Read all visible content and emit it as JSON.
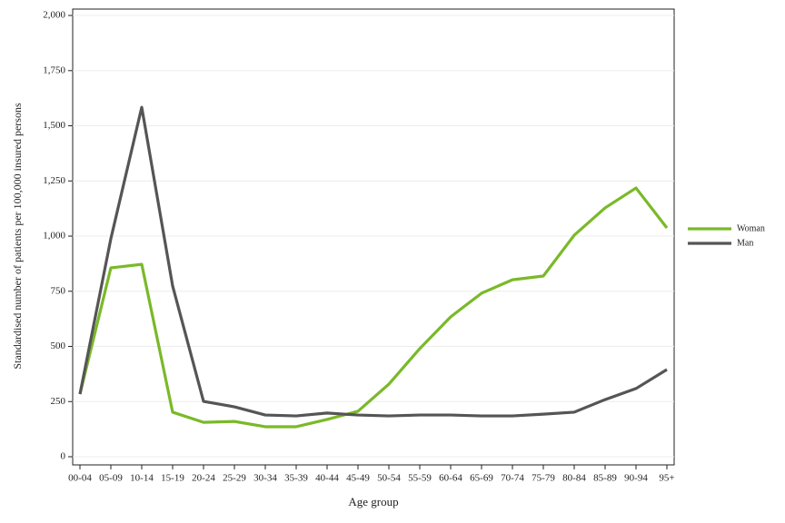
{
  "chart_data": {
    "type": "line",
    "x_label": "Age group",
    "y_label": "Standardised number of patients per 100,000 insured persons",
    "categories": [
      "00-04",
      "05-09",
      "10-14",
      "15-19",
      "20-24",
      "25-29",
      "30-34",
      "35-39",
      "40-44",
      "45-49",
      "50-54",
      "55-59",
      "60-64",
      "65-69",
      "70-74",
      "75-79",
      "80-84",
      "85-89",
      "90-94",
      "95+"
    ],
    "series": [
      {
        "name": "Woman",
        "color": "#7ab929",
        "values": [
          284,
          856,
          872,
          202,
          156,
          160,
          136,
          136,
          169,
          206,
          329,
          490,
          634,
          741,
          802,
          819,
          1004,
          1128,
          1218,
          1037
        ]
      },
      {
        "name": "Man",
        "color": "#555555",
        "values": [
          284,
          988,
          1584,
          774,
          251,
          226,
          189,
          185,
          198,
          189,
          185,
          189,
          189,
          185,
          185,
          193,
          202,
          259,
          309,
          395
        ]
      }
    ],
    "ylim": [
      -37,
      2029
    ],
    "yticks": [
      0,
      250,
      500,
      750,
      {
        "value": 1000,
        "label": "1,000"
      },
      {
        "value": 1250,
        "label": "1,250"
      },
      {
        "value": 1500,
        "label": "1,500"
      },
      {
        "value": 1750,
        "label": "1,750"
      },
      {
        "value": 2000,
        "label": "2,000"
      }
    ],
    "grid": true,
    "legend": "right"
  }
}
